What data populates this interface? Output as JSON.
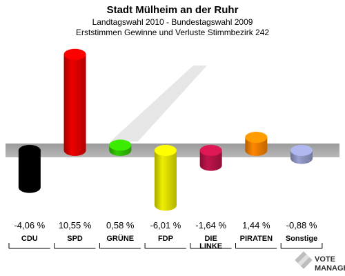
{
  "chart_data": {
    "type": "bar",
    "title": "Stadt Mülheim an der Ruhr",
    "subtitle1": "Landtagswahl 2010 - Bundestagswahl 2009",
    "subtitle2": "Erststimmen Gewinne und Verluste Stimmbezirk 242",
    "categories": [
      "CDU",
      "SPD",
      "GRÜNE",
      "FDP",
      "DIE LINKE",
      "PIRATEN",
      "Sonstige"
    ],
    "values": [
      -4.06,
      10.55,
      0.58,
      -6.01,
      -1.64,
      1.44,
      -0.88
    ],
    "value_labels": [
      "-4,06 %",
      "10,55 %",
      "0,58 %",
      "-6,01 %",
      "-1,64 %",
      "1,44 %",
      "-0,88 %"
    ],
    "colors": [
      "#000000",
      "#ee0000",
      "#33cc00",
      "#eeee00",
      "#c0154a",
      "#ff8800",
      "#99a0d0"
    ],
    "ylim": [
      -6.5,
      11
    ],
    "grid": false
  },
  "watermark": {
    "line1": "VOTE",
    "line2": "MANAGER"
  }
}
